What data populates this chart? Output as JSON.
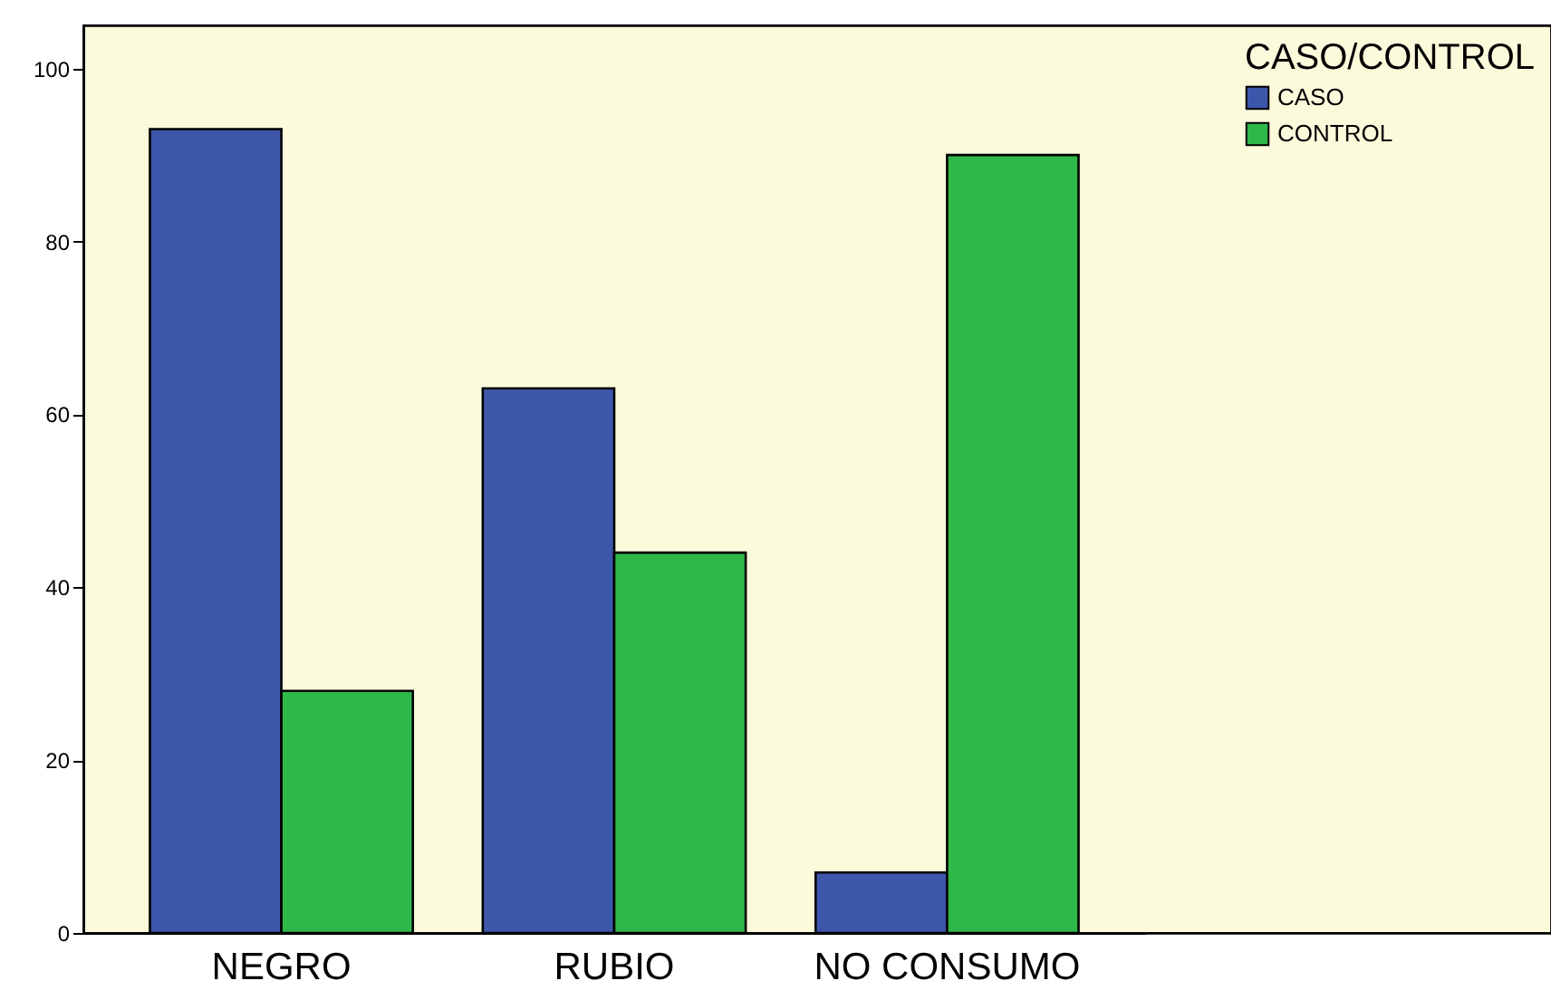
{
  "chart_data": {
    "type": "bar",
    "categories": [
      "NEGRO",
      "RUBIO",
      "NO CONSUMO"
    ],
    "series": [
      {
        "name": "CASO",
        "color": "#3e56aa",
        "values": [
          93,
          63,
          7
        ]
      },
      {
        "name": "CONTROL",
        "color": "#2fb84a",
        "values": [
          28,
          44,
          90
        ]
      }
    ],
    "ylim": [
      0,
      105
    ],
    "yticks": [
      0,
      20,
      40,
      60,
      80,
      100
    ],
    "legend_title": "CASO/CONTROL",
    "legend": "top right",
    "grid": false
  }
}
